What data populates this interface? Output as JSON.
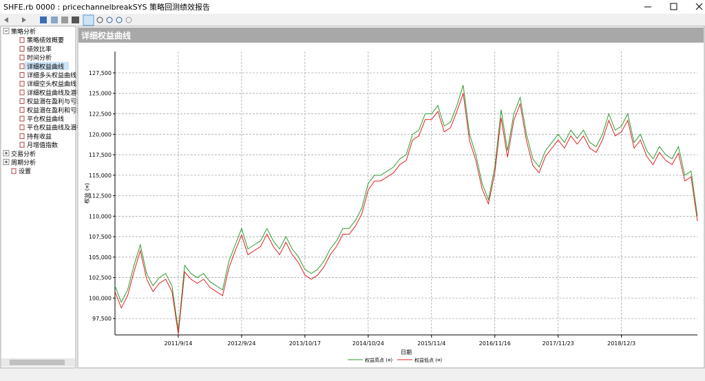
{
  "window": {
    "title": "SHFE.rb 0000 : pricechannelbreakSYS 策略回测绩效报告"
  },
  "tree": {
    "groups": [
      {
        "label": "策略分析",
        "items": [
          "策略绩效概要",
          "绩效比率",
          "时间分析",
          "详细权益曲线",
          "详细多头权益曲线",
          "详细空头权益曲线",
          "详细权益曲线及潜在",
          "权益潜在盈利与亏损",
          "权益潜在盈利和亏损",
          "平仓权益曲线",
          "平仓权益曲线及潜在",
          "持有收益",
          "月增值指数"
        ]
      },
      {
        "label": "交易分析"
      },
      {
        "label": "周期分析"
      },
      {
        "label": "设置"
      }
    ]
  },
  "panel": {
    "title": "详细权益曲线"
  },
  "chart_data": {
    "type": "line",
    "ylabel": "权益 (¤)",
    "xlabel": "日期",
    "categories": [
      null,
      null,
      null,
      null,
      null,
      null,
      null,
      null,
      null,
      null,
      "2011/9/14",
      null,
      null,
      null,
      null,
      null,
      null,
      null,
      null,
      null,
      "2012/9/24",
      null,
      null,
      null,
      null,
      null,
      null,
      null,
      null,
      null,
      "2013/10/17",
      null,
      null,
      null,
      null,
      null,
      null,
      null,
      null,
      null,
      "2014/10/24",
      null,
      null,
      null,
      null,
      null,
      null,
      null,
      null,
      null,
      "2015/11/4",
      null,
      null,
      null,
      null,
      null,
      null,
      null,
      null,
      null,
      "2016/11/16",
      null,
      null,
      null,
      null,
      null,
      null,
      null,
      null,
      null,
      "2017/11/23",
      null,
      null,
      null,
      null,
      null,
      null,
      null,
      null,
      null,
      "2018/12/3",
      null,
      null,
      null,
      null,
      null,
      null,
      null,
      null,
      null,
      null,
      null,
      null
    ],
    "series": [
      {
        "name": "权益高点 (¤)",
        "color": "#2e9a2e",
        "values": [
          101500,
          99500,
          101000,
          104000,
          106500,
          103000,
          101500,
          102500,
          103000,
          101500,
          96000,
          104000,
          103000,
          102500,
          103000,
          102000,
          101500,
          101000,
          104500,
          106500,
          108500,
          106000,
          106500,
          107000,
          108500,
          107000,
          106000,
          107500,
          106000,
          105000,
          103500,
          103000,
          103500,
          104500,
          106000,
          107000,
          108500,
          108500,
          109500,
          111000,
          114000,
          115000,
          115000,
          115500,
          116000,
          117000,
          117500,
          120000,
          120500,
          122500,
          122500,
          123500,
          121000,
          121500,
          123500,
          126000,
          120000,
          117500,
          114000,
          112000,
          116000,
          123000,
          118000,
          122500,
          124500,
          120000,
          117000,
          116000,
          118000,
          119000,
          120000,
          119000,
          120500,
          119500,
          120500,
          119000,
          118500,
          120000,
          122500,
          120500,
          121000,
          122500,
          119000,
          120000,
          118000,
          117000,
          118500,
          117500,
          117000,
          118500,
          115000,
          115500,
          110000
        ]
      },
      {
        "name": "权益低点 (¤)",
        "color": "#e02020",
        "values": [
          100800,
          98800,
          100300,
          103200,
          105800,
          102300,
          100800,
          101800,
          102300,
          100800,
          95600,
          103200,
          102300,
          101800,
          102300,
          101300,
          100800,
          100300,
          103700,
          105800,
          107700,
          105300,
          105800,
          106300,
          107800,
          106300,
          105300,
          106800,
          105300,
          104300,
          102800,
          102300,
          102800,
          103800,
          105300,
          106300,
          107800,
          107800,
          108800,
          110300,
          113200,
          114300,
          114300,
          114800,
          115300,
          116300,
          116800,
          119300,
          119800,
          121800,
          121800,
          122800,
          120300,
          120800,
          122800,
          125000,
          119200,
          116800,
          113300,
          111500,
          115300,
          122000,
          117200,
          121700,
          123700,
          119200,
          116200,
          115300,
          117300,
          118300,
          119300,
          118300,
          119800,
          118800,
          119800,
          118300,
          117800,
          119300,
          121700,
          119800,
          120300,
          121700,
          118300,
          119300,
          117300,
          116300,
          117800,
          116800,
          116300,
          117700,
          114300,
          114800,
          109400
        ]
      }
    ],
    "ylim": [
      95500,
      130100
    ],
    "yticks": [
      {
        "value": 97500,
        "label": "97,500"
      },
      {
        "value": 100000,
        "label": "100,000"
      },
      {
        "value": 102500,
        "label": "102,500"
      },
      {
        "value": 105000,
        "label": "105,000"
      },
      {
        "value": 107500,
        "label": "107,500"
      },
      {
        "value": 110000,
        "label": "110,000"
      },
      {
        "value": 112500,
        "label": "112,500"
      },
      {
        "value": 115000,
        "label": "115,000"
      },
      {
        "value": 117500,
        "label": "117,500"
      },
      {
        "value": 120000,
        "label": "120,000"
      },
      {
        "value": 122500,
        "label": "122,500"
      },
      {
        "value": 125000,
        "label": "125,000"
      },
      {
        "value": 127500,
        "label": "127,500"
      }
    ],
    "grid": true,
    "legend": "bottom"
  }
}
